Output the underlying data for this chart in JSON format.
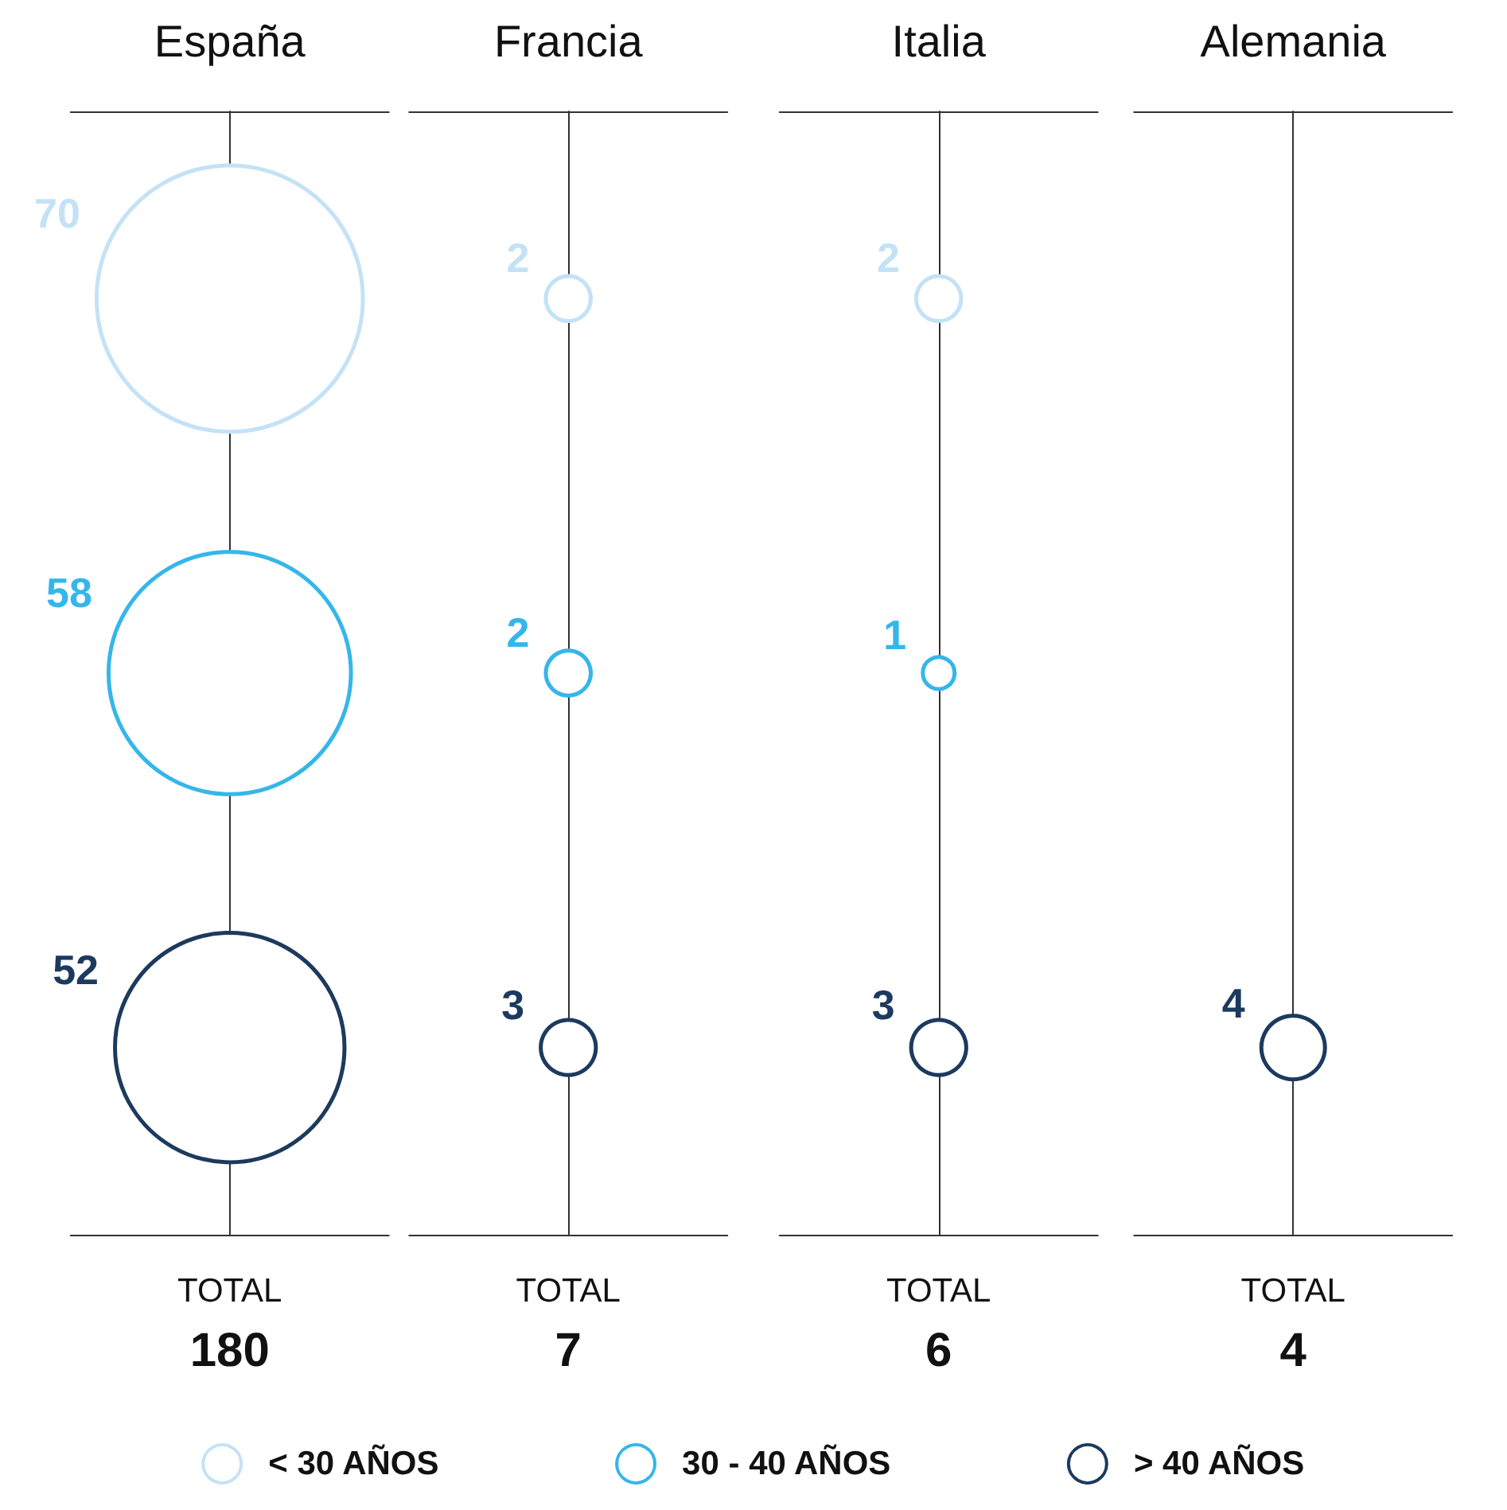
{
  "chart_data": {
    "type": "other",
    "categories": [
      "España",
      "Francia",
      "Italia",
      "Alemania"
    ],
    "series": [
      {
        "name": "< 30 AÑOS",
        "color": "#c4e2f6",
        "values": [
          70,
          2,
          2,
          null
        ]
      },
      {
        "name": "30 - 40 AÑOS",
        "color": "#35b6ea",
        "values": [
          58,
          2,
          1,
          null
        ]
      },
      {
        "name": "> 40 AÑOS",
        "color": "#1c3a5e",
        "values": [
          52,
          3,
          3,
          4
        ]
      }
    ],
    "data_labels": true,
    "totals": [
      "180",
      "7",
      "6",
      "4"
    ],
    "annotations": [
      "TOTAL",
      "TOTAL",
      "TOTAL",
      "TOTAL"
    ],
    "legend": "bottom"
  }
}
